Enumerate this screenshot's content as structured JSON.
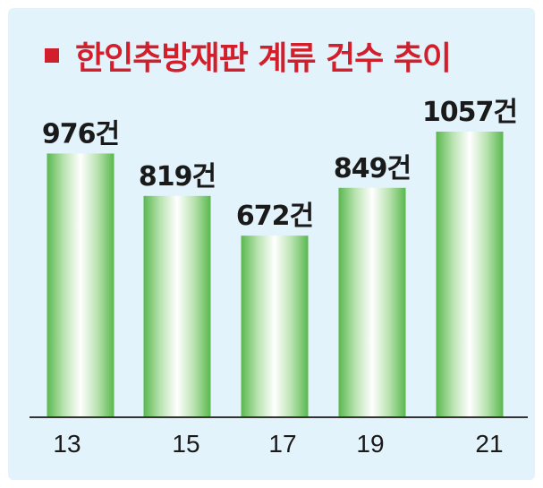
{
  "title": "한인추방재판 계류 건수 추이",
  "colors": {
    "background": "#e3f3fb",
    "title": "#d21f2c",
    "bar_light": "#ffffff",
    "bar_mid": "#b9e3b0",
    "bar_dark": "#5ab84f",
    "axis": "#333333"
  },
  "chart_data": {
    "type": "bar",
    "title": "한인추방재판 계류 건수 추이",
    "categories": [
      "13",
      "15",
      "17",
      "19",
      "21"
    ],
    "values": [
      976,
      819,
      672,
      849,
      1057
    ],
    "data_labels": [
      "976건",
      "819건",
      "672건",
      "849건",
      "1057건"
    ],
    "xlabel": "",
    "ylabel": "",
    "ylim": [
      0,
      1057
    ],
    "grid": false,
    "legend": "none"
  }
}
